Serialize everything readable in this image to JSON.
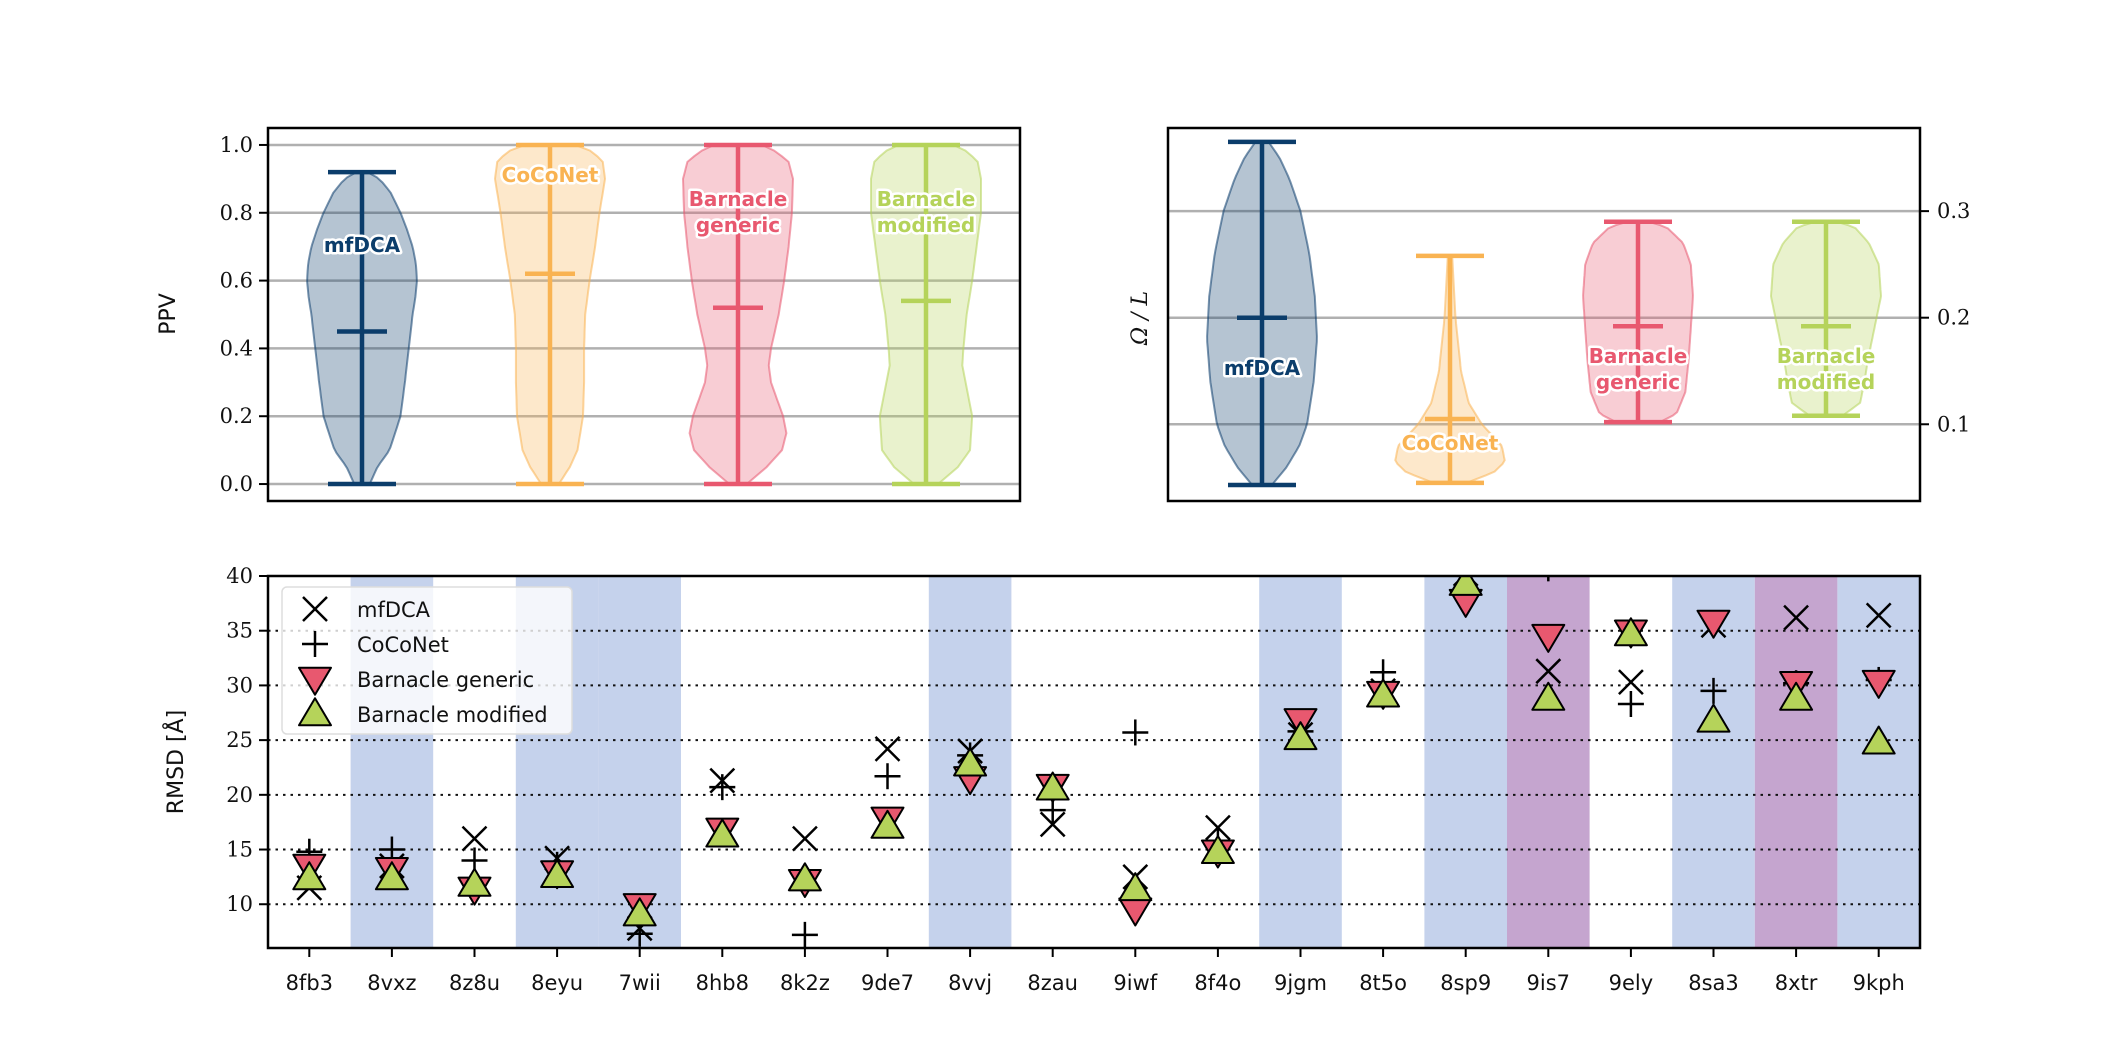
{
  "colors": {
    "mfDCA": "#0b3d6b",
    "CoCoNet": "#f9b352",
    "Barnacle generic": "#e8586f",
    "Barnacle modified": "#b5d35a",
    "band_blue": "#c5d2ec",
    "band_purple": "#c5a5cf",
    "grid": "#b0b0b0"
  },
  "chart_data": [
    {
      "type": "violin",
      "ylabel": "PPV",
      "ylim": [
        -0.05,
        1.05
      ],
      "yticks": [
        "0.0",
        "0.2",
        "0.4",
        "0.6",
        "0.8",
        "1.0"
      ],
      "ytick_values": [
        0.0,
        0.2,
        0.4,
        0.6,
        0.8,
        1.0
      ],
      "grid": "horizontal",
      "series": [
        {
          "name": "mfDCA",
          "label_lines": [
            "mfDCA"
          ],
          "min": 0.0,
          "max": 0.92,
          "mean": 0.45,
          "profile": [
            [
              0.0,
              0.14
            ],
            [
              0.05,
              0.28
            ],
            [
              0.1,
              0.5
            ],
            [
              0.2,
              0.7
            ],
            [
              0.3,
              0.78
            ],
            [
              0.4,
              0.85
            ],
            [
              0.5,
              0.92
            ],
            [
              0.55,
              0.97
            ],
            [
              0.6,
              1.0
            ],
            [
              0.65,
              0.98
            ],
            [
              0.7,
              0.92
            ],
            [
              0.75,
              0.82
            ],
            [
              0.8,
              0.7
            ],
            [
              0.86,
              0.52
            ],
            [
              0.9,
              0.32
            ],
            [
              0.92,
              0.1
            ]
          ]
        },
        {
          "name": "CoCoNet",
          "label_lines": [
            "CoCoNet"
          ],
          "min": 0.0,
          "max": 1.0,
          "mean": 0.62,
          "profile": [
            [
              0.0,
              0.16
            ],
            [
              0.05,
              0.36
            ],
            [
              0.1,
              0.5
            ],
            [
              0.2,
              0.6
            ],
            [
              0.3,
              0.62
            ],
            [
              0.4,
              0.62
            ],
            [
              0.5,
              0.64
            ],
            [
              0.6,
              0.72
            ],
            [
              0.7,
              0.82
            ],
            [
              0.8,
              0.9
            ],
            [
              0.9,
              1.0
            ],
            [
              0.95,
              0.96
            ],
            [
              0.98,
              0.78
            ],
            [
              1.0,
              0.46
            ]
          ]
        },
        {
          "name": "Barnacle generic",
          "label_lines": [
            "Barnacle",
            "generic"
          ],
          "min": 0.0,
          "max": 1.0,
          "mean": 0.52,
          "profile": [
            [
              0.0,
              0.16
            ],
            [
              0.05,
              0.52
            ],
            [
              0.1,
              0.8
            ],
            [
              0.15,
              0.88
            ],
            [
              0.2,
              0.82
            ],
            [
              0.3,
              0.6
            ],
            [
              0.35,
              0.56
            ],
            [
              0.4,
              0.6
            ],
            [
              0.5,
              0.74
            ],
            [
              0.6,
              0.84
            ],
            [
              0.7,
              0.92
            ],
            [
              0.8,
              0.98
            ],
            [
              0.9,
              1.0
            ],
            [
              0.95,
              0.92
            ],
            [
              0.98,
              0.7
            ],
            [
              1.0,
              0.44
            ]
          ]
        },
        {
          "name": "Barnacle modified",
          "label_lines": [
            "Barnacle",
            "modified"
          ],
          "min": 0.0,
          "max": 1.0,
          "mean": 0.54,
          "profile": [
            [
              0.0,
              0.22
            ],
            [
              0.05,
              0.58
            ],
            [
              0.1,
              0.8
            ],
            [
              0.2,
              0.84
            ],
            [
              0.3,
              0.72
            ],
            [
              0.35,
              0.66
            ],
            [
              0.4,
              0.68
            ],
            [
              0.5,
              0.74
            ],
            [
              0.6,
              0.84
            ],
            [
              0.7,
              0.92
            ],
            [
              0.8,
              1.0
            ],
            [
              0.9,
              1.0
            ],
            [
              0.95,
              0.94
            ],
            [
              0.98,
              0.76
            ],
            [
              1.0,
              0.5
            ]
          ]
        }
      ]
    },
    {
      "type": "violin",
      "ylabel": "Ω / L",
      "ylim": [
        0.028,
        0.378
      ],
      "yticks": [
        "0.1",
        "0.2",
        "0.3"
      ],
      "ytick_values": [
        0.1,
        0.2,
        0.3
      ],
      "yaxis_side": "right",
      "grid": "horizontal",
      "series": [
        {
          "name": "mfDCA",
          "label_lines": [
            "mfDCA"
          ],
          "min": 0.043,
          "max": 0.365,
          "mean": 0.2,
          "profile": [
            [
              0.043,
              0.18
            ],
            [
              0.06,
              0.45
            ],
            [
              0.08,
              0.68
            ],
            [
              0.1,
              0.82
            ],
            [
              0.14,
              0.94
            ],
            [
              0.18,
              1.0
            ],
            [
              0.22,
              0.96
            ],
            [
              0.26,
              0.86
            ],
            [
              0.3,
              0.7
            ],
            [
              0.33,
              0.5
            ],
            [
              0.35,
              0.32
            ],
            [
              0.365,
              0.12
            ]
          ]
        },
        {
          "name": "CoCoNet",
          "label_lines": [
            "CoCoNet"
          ],
          "min": 0.045,
          "max": 0.258,
          "mean": 0.105,
          "profile": [
            [
              0.045,
              0.3
            ],
            [
              0.055,
              0.8
            ],
            [
              0.065,
              1.0
            ],
            [
              0.08,
              0.94
            ],
            [
              0.1,
              0.58
            ],
            [
              0.12,
              0.34
            ],
            [
              0.15,
              0.2
            ],
            [
              0.2,
              0.1
            ],
            [
              0.258,
              0.04
            ]
          ]
        },
        {
          "name": "Barnacle generic",
          "label_lines": [
            "Barnacle",
            "generic"
          ],
          "min": 0.102,
          "max": 0.29,
          "mean": 0.192,
          "profile": [
            [
              0.102,
              0.4
            ],
            [
              0.11,
              0.7
            ],
            [
              0.13,
              0.86
            ],
            [
              0.16,
              0.92
            ],
            [
              0.19,
              0.96
            ],
            [
              0.22,
              1.0
            ],
            [
              0.25,
              0.96
            ],
            [
              0.27,
              0.82
            ],
            [
              0.285,
              0.52
            ],
            [
              0.29,
              0.2
            ]
          ]
        },
        {
          "name": "Barnacle modified",
          "label_lines": [
            "Barnacle",
            "modified"
          ],
          "min": 0.108,
          "max": 0.29,
          "mean": 0.192,
          "profile": [
            [
              0.108,
              0.3
            ],
            [
              0.12,
              0.62
            ],
            [
              0.14,
              0.7
            ],
            [
              0.16,
              0.76
            ],
            [
              0.18,
              0.84
            ],
            [
              0.2,
              0.92
            ],
            [
              0.22,
              1.0
            ],
            [
              0.25,
              0.96
            ],
            [
              0.27,
              0.78
            ],
            [
              0.285,
              0.52
            ],
            [
              0.29,
              0.2
            ]
          ]
        }
      ]
    },
    {
      "type": "scatter",
      "ylabel": "RMSD [Å]",
      "ylim": [
        6,
        40
      ],
      "yticks": [
        "10",
        "15",
        "20",
        "25",
        "30",
        "35",
        "40"
      ],
      "ytick_values": [
        10,
        15,
        20,
        25,
        30,
        35,
        40
      ],
      "grid": "horizontal-dotted",
      "legend": "top-left",
      "categories": [
        "8fb3",
        "8vxz",
        "8z8u",
        "8eyu",
        "7wii",
        "8hb8",
        "8k2z",
        "9de7",
        "8vvj",
        "8zau",
        "9iwf",
        "8f4o",
        "9jgm",
        "8t5o",
        "8sp9",
        "9is7",
        "9ely",
        "8sa3",
        "8xtr",
        "9kph"
      ],
      "bands": [
        "none",
        "blue",
        "none",
        "blue",
        "blue",
        "none",
        "none",
        "none",
        "blue",
        "none",
        "none",
        "none",
        "blue",
        "none",
        "blue",
        "purple",
        "none",
        "blue",
        "purple",
        "blue"
      ],
      "series": [
        {
          "name": "mfDCA",
          "marker": "x",
          "values": [
            11.5,
            13.5,
            16,
            14.2,
            7.8,
            21.3,
            16,
            24.2,
            24,
            17.3,
            12.5,
            17,
            25.5,
            29.5,
            40.2,
            31.3,
            30.3,
            35.5,
            36.2,
            36.4
          ]
        },
        {
          "name": "CoCoNet",
          "marker": "+",
          "values": [
            14.8,
            15,
            14,
            13.6,
            7.3,
            20.7,
            7.2,
            21.7,
            23.6,
            18.6,
            25.7,
            15.8,
            25.8,
            31.2,
            40.8,
            40.7,
            28.3,
            29.5,
            30.2,
            30.5
          ]
        },
        {
          "name": "Barnacle generic",
          "marker": "triangle-down",
          "values": [
            13.5,
            13.2,
            11.4,
            12.9,
            9.9,
            16.8,
            12.1,
            17.8,
            21.5,
            20.8,
            9.5,
            14.8,
            26.8,
            29.3,
            37.7,
            34.5,
            34.9,
            35.8,
            30.2,
            30.3
          ]
        },
        {
          "name": "Barnacle modified",
          "marker": "triangle-up",
          "values": [
            12.4,
            12.4,
            11.8,
            12.6,
            9.1,
            16.3,
            12.3,
            17.1,
            22.8,
            20.6,
            11.4,
            14.8,
            25.2,
            29.1,
            39.3,
            28.8,
            34.7,
            26.8,
            28.8,
            24.8
          ]
        }
      ]
    }
  ]
}
